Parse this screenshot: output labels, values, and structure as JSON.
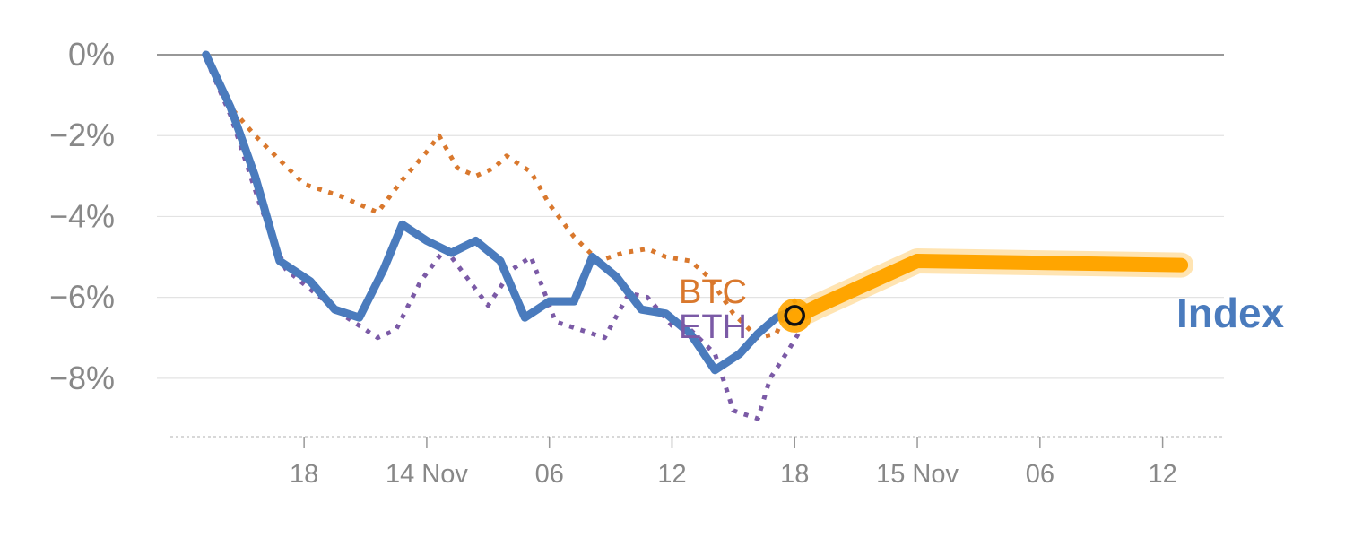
{
  "chart_data": {
    "type": "line",
    "title": "",
    "xlabel": "",
    "ylabel": "",
    "x_ticks": [
      {
        "label": "18",
        "pos": 5
      },
      {
        "label": "14 Nov",
        "pos": 7
      },
      {
        "label": "06",
        "pos": 9
      },
      {
        "label": "12",
        "pos": 11
      },
      {
        "label": "18",
        "pos": 13
      },
      {
        "label": "15 Nov",
        "pos": 15
      },
      {
        "label": "06",
        "pos": 17
      },
      {
        "label": "12",
        "pos": 19
      }
    ],
    "xlim": [
      2.6,
      20
    ],
    "ylim": [
      -9.4,
      0
    ],
    "y_ticks": [
      {
        "label": "0%",
        "value": 0
      },
      {
        "label": "−2%",
        "value": -2
      },
      {
        "label": "−4%",
        "value": -4
      },
      {
        "label": "−6%",
        "value": -6
      },
      {
        "label": "−8%",
        "value": -8
      }
    ],
    "series": [
      {
        "name": "BTC",
        "color": "#d9782d",
        "style": "dotted",
        "points": [
          [
            3.4,
            -0.1
          ],
          [
            3.8,
            -1.3
          ],
          [
            4.2,
            -2.0
          ],
          [
            5.0,
            -3.2
          ],
          [
            5.6,
            -3.5
          ],
          [
            6.2,
            -3.9
          ],
          [
            6.6,
            -3.1
          ],
          [
            7.0,
            -2.4
          ],
          [
            7.2,
            -2.0
          ],
          [
            7.5,
            -2.8
          ],
          [
            7.8,
            -3.0
          ],
          [
            8.1,
            -2.8
          ],
          [
            8.3,
            -2.5
          ],
          [
            8.7,
            -2.9
          ],
          [
            9.0,
            -3.7
          ],
          [
            9.4,
            -4.5
          ],
          [
            9.8,
            -5.1
          ],
          [
            10.2,
            -4.9
          ],
          [
            10.6,
            -4.8
          ],
          [
            10.9,
            -5.0
          ],
          [
            11.3,
            -5.1
          ],
          [
            11.6,
            -5.5
          ],
          [
            12.0,
            -6.4
          ],
          [
            12.4,
            -7.0
          ],
          [
            12.7,
            -6.9
          ],
          [
            12.9,
            -6.2
          ],
          [
            13.1,
            -6.0
          ]
        ]
      },
      {
        "name": "ETH",
        "color": "#7b5aa6",
        "style": "dotted",
        "points": [
          [
            3.4,
            -0.1
          ],
          [
            3.8,
            -1.5
          ],
          [
            4.3,
            -3.8
          ],
          [
            4.7,
            -5.3
          ],
          [
            5.1,
            -5.8
          ],
          [
            5.6,
            -6.4
          ],
          [
            6.2,
            -7.0
          ],
          [
            6.5,
            -6.8
          ],
          [
            6.9,
            -5.6
          ],
          [
            7.3,
            -4.8
          ],
          [
            7.7,
            -5.6
          ],
          [
            8.0,
            -6.2
          ],
          [
            8.4,
            -5.3
          ],
          [
            8.7,
            -5.0
          ],
          [
            9.1,
            -6.6
          ],
          [
            9.5,
            -6.8
          ],
          [
            9.9,
            -7.0
          ],
          [
            10.3,
            -5.9
          ],
          [
            10.6,
            -6.0
          ],
          [
            11.0,
            -6.7
          ],
          [
            11.3,
            -6.8
          ],
          [
            11.7,
            -7.4
          ],
          [
            12.0,
            -8.8
          ],
          [
            12.4,
            -9.0
          ],
          [
            12.6,
            -8.0
          ],
          [
            12.9,
            -7.3
          ],
          [
            13.1,
            -6.8
          ]
        ]
      },
      {
        "name": "Index",
        "color": "#4a7bbd",
        "style": "solid",
        "points": [
          [
            3.4,
            0.0
          ],
          [
            3.8,
            -1.3
          ],
          [
            4.2,
            -3.0
          ],
          [
            4.6,
            -5.1
          ],
          [
            5.1,
            -5.6
          ],
          [
            5.5,
            -6.3
          ],
          [
            5.9,
            -6.5
          ],
          [
            6.3,
            -5.3
          ],
          [
            6.6,
            -4.2
          ],
          [
            7.0,
            -4.6
          ],
          [
            7.4,
            -4.9
          ],
          [
            7.8,
            -4.6
          ],
          [
            8.2,
            -5.1
          ],
          [
            8.6,
            -6.5
          ],
          [
            9.0,
            -6.1
          ],
          [
            9.4,
            -6.1
          ],
          [
            9.7,
            -5.0
          ],
          [
            10.1,
            -5.5
          ],
          [
            10.5,
            -6.3
          ],
          [
            10.9,
            -6.4
          ],
          [
            11.3,
            -6.9
          ],
          [
            11.7,
            -7.8
          ],
          [
            12.1,
            -7.4
          ],
          [
            12.4,
            -6.9
          ],
          [
            12.7,
            -6.5
          ],
          [
            13.0,
            -6.3
          ]
        ]
      },
      {
        "name": "Index (highlight)",
        "color": "#ffa500",
        "style": "thick",
        "points": [
          [
            13.0,
            -6.5
          ],
          [
            13.4,
            -6.2
          ],
          [
            15.0,
            -5.1
          ],
          [
            19.3,
            -5.2
          ]
        ]
      }
    ],
    "marker": {
      "x": 13.0,
      "y": -6.45
    },
    "labels": {
      "btc": "BTC",
      "eth": "ETH",
      "index": "Index"
    }
  }
}
